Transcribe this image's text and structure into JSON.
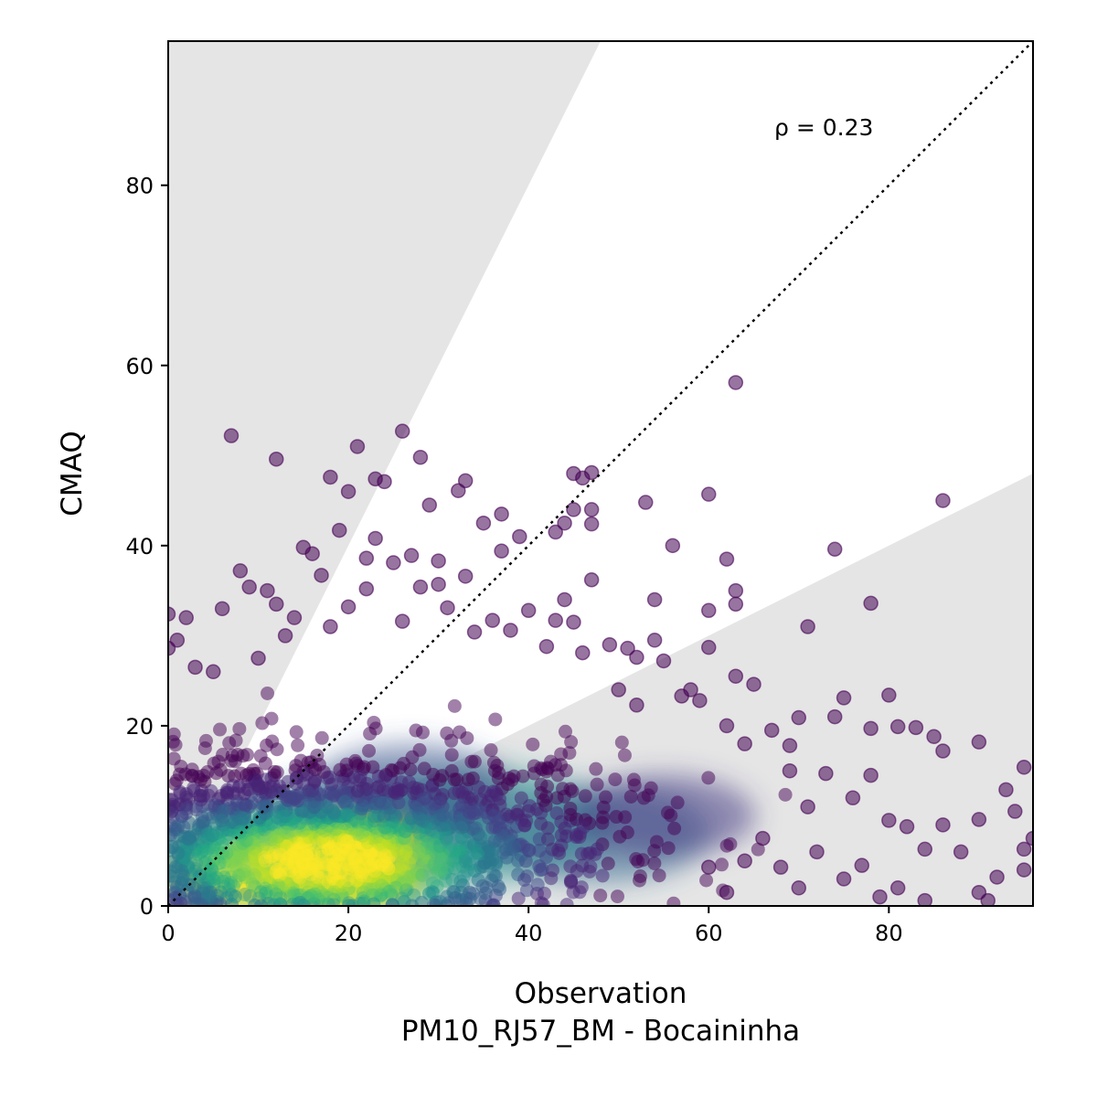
{
  "chart_data": {
    "type": "scatter",
    "title": "",
    "xlabel": "Observation",
    "xlabel_sub": "PM10_RJ57_BM - Bocaininha",
    "ylabel": "CMAQ",
    "xlim": [
      0,
      96
    ],
    "ylim": [
      0,
      96
    ],
    "xticks": [
      0,
      20,
      40,
      60,
      80
    ],
    "yticks": [
      0,
      20,
      40,
      60,
      80
    ],
    "xtick_labels": [
      "0",
      "20",
      "40",
      "60",
      "80"
    ],
    "ytick_labels": [
      "0",
      "20",
      "40",
      "60",
      "80"
    ],
    "annotation": "ρ = 0.23",
    "grid": false,
    "colormap": "viridis",
    "point_color_low_density": "#440154",
    "point_color_high_density": "#fde725",
    "shaded_band_color": "#e5e5e5",
    "one_to_one_line": {
      "style": "dotted",
      "color": "#000000",
      "from": [
        0,
        0
      ],
      "to": [
        96,
        96
      ]
    },
    "acceptable_band": {
      "upper_slope": 2.0,
      "lower_slope": 0.5
    },
    "outliers": [
      [
        7,
        52.2
      ],
      [
        12,
        49.6
      ],
      [
        21,
        51
      ],
      [
        26,
        52.7
      ],
      [
        28,
        49.8
      ],
      [
        18,
        47.6
      ],
      [
        20,
        46
      ],
      [
        23,
        47.4
      ],
      [
        24,
        47.1
      ],
      [
        32.2,
        46.1
      ],
      [
        33,
        47.2
      ],
      [
        45,
        48
      ],
      [
        47,
        48.1
      ],
      [
        46,
        47.5
      ],
      [
        47,
        44
      ],
      [
        47,
        42.4
      ],
      [
        53,
        44.8
      ],
      [
        60,
        45.7
      ],
      [
        63,
        58.1
      ],
      [
        86,
        45
      ],
      [
        29,
        44.5
      ],
      [
        35,
        42.5
      ],
      [
        37,
        43.5
      ],
      [
        39,
        41
      ],
      [
        43,
        41.5
      ],
      [
        44,
        42.5
      ],
      [
        45,
        44
      ],
      [
        47,
        36.2
      ],
      [
        37,
        39.4
      ],
      [
        25,
        38.1
      ],
      [
        22,
        38.6
      ],
      [
        27,
        38.9
      ],
      [
        30,
        38.3
      ],
      [
        19,
        41.7
      ],
      [
        15,
        39.8
      ],
      [
        16,
        39.1
      ],
      [
        8,
        37.2
      ],
      [
        9,
        35.4
      ],
      [
        11,
        35
      ],
      [
        12,
        33.5
      ],
      [
        6,
        33
      ],
      [
        2,
        32
      ],
      [
        17,
        36.7
      ],
      [
        23,
        40.8
      ],
      [
        33,
        36.6
      ],
      [
        30,
        35.7
      ],
      [
        28,
        35.4
      ],
      [
        40,
        32.8
      ],
      [
        43,
        31.7
      ],
      [
        44,
        34
      ],
      [
        45,
        31.5
      ],
      [
        49,
        29
      ],
      [
        51,
        28.6
      ],
      [
        54,
        34
      ],
      [
        54,
        29.5
      ],
      [
        55,
        27.2
      ],
      [
        56,
        40
      ],
      [
        60,
        32.8
      ],
      [
        62,
        38.5
      ],
      [
        63,
        35
      ],
      [
        63,
        33.5
      ],
      [
        60,
        28.7
      ],
      [
        63,
        25.5
      ],
      [
        65,
        24.6
      ],
      [
        71,
        31
      ],
      [
        74,
        39.6
      ],
      [
        78,
        33.6
      ],
      [
        62,
        20
      ],
      [
        64,
        18
      ],
      [
        67,
        19.5
      ],
      [
        69,
        17.8
      ],
      [
        70,
        20.9
      ],
      [
        75,
        23.1
      ],
      [
        74,
        21
      ],
      [
        78,
        19.7
      ],
      [
        80,
        23.4
      ],
      [
        81,
        19.9
      ],
      [
        83,
        19.8
      ],
      [
        85,
        18.8
      ],
      [
        86,
        17.2
      ],
      [
        90,
        18.2
      ],
      [
        95,
        15.4
      ],
      [
        93,
        12.9
      ],
      [
        94,
        10.5
      ],
      [
        96,
        7.5
      ],
      [
        95,
        6.3
      ],
      [
        95,
        4
      ],
      [
        90,
        9.6
      ],
      [
        92,
        3.2
      ],
      [
        90,
        1.5
      ],
      [
        91,
        0.6
      ],
      [
        88,
        6
      ],
      [
        86,
        9
      ],
      [
        84,
        6.3
      ],
      [
        82,
        8.8
      ],
      [
        80,
        9.5
      ],
      [
        81,
        2
      ],
      [
        79,
        1
      ],
      [
        75,
        3
      ],
      [
        72,
        6
      ],
      [
        70,
        2
      ],
      [
        68,
        4.3
      ],
      [
        66,
        7.5
      ],
      [
        64,
        5
      ],
      [
        62,
        1.5
      ],
      [
        60,
        4.3
      ],
      [
        78,
        14.5
      ],
      [
        76,
        12
      ],
      [
        73,
        14.7
      ],
      [
        71,
        11
      ],
      [
        69,
        15
      ],
      [
        77,
        4.5
      ],
      [
        84,
        0.6
      ],
      [
        0,
        32.4
      ],
      [
        1,
        29.5
      ],
      [
        0,
        28.6
      ],
      [
        3,
        26.5
      ],
      [
        5,
        26
      ],
      [
        10,
        27.5
      ],
      [
        13,
        30
      ],
      [
        14,
        32
      ],
      [
        18,
        31
      ],
      [
        20,
        33.2
      ],
      [
        22,
        35.2
      ],
      [
        26,
        31.6
      ],
      [
        31,
        33.1
      ],
      [
        34,
        30.4
      ],
      [
        36,
        31.7
      ],
      [
        38,
        30.6
      ],
      [
        42,
        28.8
      ],
      [
        46,
        28.1
      ],
      [
        52,
        27.6
      ],
      [
        58,
        24
      ],
      [
        57,
        23.3
      ],
      [
        59,
        22.8
      ],
      [
        52,
        22.3
      ],
      [
        50,
        24
      ]
    ]
  }
}
